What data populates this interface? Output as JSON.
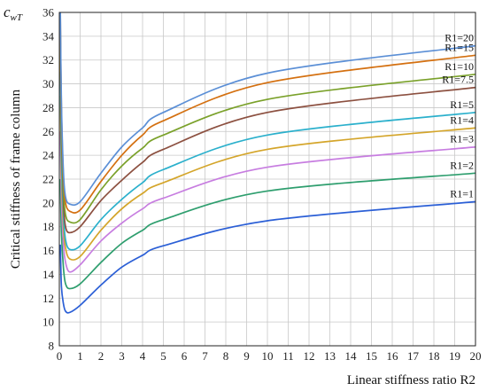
{
  "chart_data": {
    "type": "line",
    "title": "",
    "corner_label_main": "c",
    "corner_label_sub": "wT",
    "xlabel": "Linear stiffness ratio R2",
    "ylabel": "Critical stiffness of frame column",
    "xlim": [
      0,
      20
    ],
    "ylim": [
      8,
      36
    ],
    "xticks": [
      0,
      1,
      2,
      3,
      4,
      5,
      6,
      7,
      8,
      9,
      10,
      11,
      12,
      13,
      14,
      15,
      16,
      17,
      18,
      19,
      20
    ],
    "yticks": [
      8,
      10,
      12,
      14,
      16,
      18,
      20,
      22,
      24,
      26,
      28,
      30,
      32,
      34,
      36
    ],
    "grid": true,
    "x": [
      0.05,
      0.1,
      0.2,
      0.3,
      0.5,
      1,
      2,
      3,
      4,
      5,
      10,
      20
    ],
    "series": [
      {
        "name": "R1=1",
        "color": "#2b5fd6",
        "values": [
          16.5,
          13.0,
          11.5,
          10.9,
          10.8,
          11.4,
          13.1,
          14.6,
          15.6,
          16.4,
          18.5,
          20.1
        ]
      },
      {
        "name": "R1=2",
        "color": "#2e9e6e",
        "values": [
          22.0,
          17.5,
          14.5,
          13.2,
          12.8,
          13.2,
          15.0,
          16.6,
          17.7,
          18.6,
          21.0,
          22.5
        ]
      },
      {
        "name": "R1=3",
        "color": "#c77de0",
        "values": [
          26.0,
          20.5,
          16.5,
          15.0,
          14.2,
          14.8,
          16.8,
          18.3,
          19.5,
          20.4,
          23.0,
          24.7
        ]
      },
      {
        "name": "R1=4",
        "color": "#d4a52a",
        "values": [
          29.0,
          22.5,
          18.0,
          16.2,
          15.3,
          15.5,
          17.7,
          19.5,
          20.8,
          21.7,
          24.5,
          26.3
        ]
      },
      {
        "name": "R1=5",
        "color": "#2bb0cc",
        "values": [
          31.0,
          24.0,
          19.0,
          16.9,
          16.1,
          16.4,
          18.6,
          20.3,
          21.7,
          22.8,
          25.7,
          27.6
        ]
      },
      {
        "name": "R1=7.5",
        "color": "#8c5040",
        "values": [
          33.0,
          26.0,
          20.0,
          18.0,
          17.5,
          18.0,
          20.2,
          21.9,
          23.4,
          24.5,
          27.6,
          29.7
        ]
      },
      {
        "name": "R1=10",
        "color": "#7aa12a",
        "values": [
          34.5,
          27.0,
          21.0,
          19.0,
          18.4,
          18.6,
          21.1,
          23.1,
          24.6,
          25.7,
          28.7,
          30.8
        ]
      },
      {
        "name": "R1=15",
        "color": "#d47010",
        "values": [
          35.5,
          28.0,
          22.0,
          20.0,
          19.3,
          19.4,
          21.8,
          24.0,
          25.7,
          26.9,
          30.1,
          32.4
        ]
      },
      {
        "name": "R1=20",
        "color": "#5b8fd6",
        "values": [
          36.0,
          28.5,
          22.5,
          20.5,
          19.9,
          20.1,
          22.5,
          24.7,
          26.3,
          27.6,
          30.9,
          33.2
        ]
      }
    ]
  }
}
